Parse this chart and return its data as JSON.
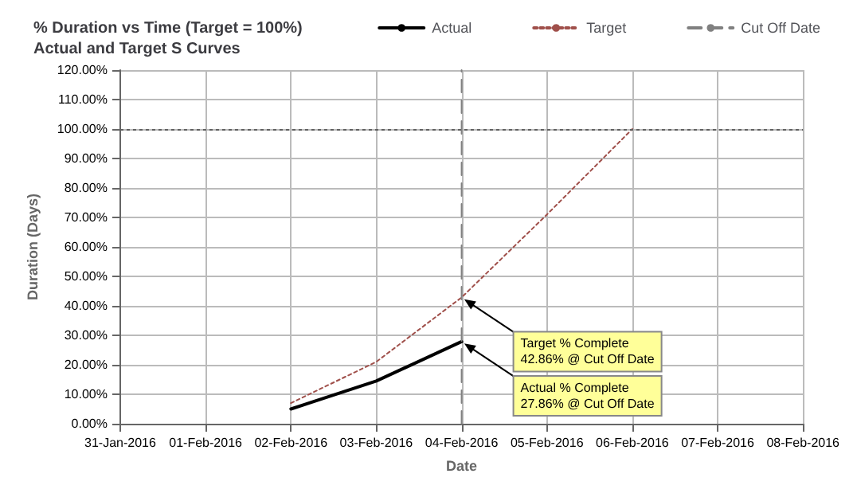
{
  "chart_data": {
    "type": "line",
    "title": "% Duration vs Time (Target = 100%)",
    "subtitle": "Actual and Target S Curves",
    "xlabel": "Date",
    "ylabel": "Duration (Days)",
    "series": [
      {
        "name": "Actual",
        "color": "#000000",
        "line_style": "solid",
        "x": [
          "2016-02-02",
          "2016-02-03",
          "2016-02-04"
        ],
        "values": [
          5,
          14.5,
          27.86
        ]
      },
      {
        "name": "Target",
        "color": "#a0504b",
        "line_style": "dotted",
        "x": [
          "2016-02-02",
          "2016-02-03",
          "2016-02-04",
          "2016-02-05",
          "2016-02-06"
        ],
        "values": [
          7,
          21,
          42.86,
          71,
          100
        ]
      },
      {
        "name": "Cut Off Date",
        "color": "#808080",
        "line_style": "dashed",
        "x": [
          "2016-02-04",
          "2016-02-04"
        ],
        "values": [
          0,
          120
        ]
      }
    ],
    "ref_lines": [
      {
        "axis": "y",
        "value": 100,
        "color": "#606060",
        "line_style": "dotted"
      }
    ],
    "annotations": [
      {
        "text": "Target % Complete\n42.86% @ Cut Off Date",
        "x": "2016-02-04",
        "y": 42.86
      },
      {
        "text": "Actual % Complete\n27.86% @ Cut Off Date",
        "x": "2016-02-04",
        "y": 27.86
      }
    ],
    "xlim": [
      "2016-01-31",
      "2016-02-08"
    ],
    "xticks": [
      {
        "value": "2016-01-31",
        "label": "31-Jan-2016"
      },
      {
        "value": "2016-02-01",
        "label": "01-Feb-2016"
      },
      {
        "value": "2016-02-02",
        "label": "02-Feb-2016"
      },
      {
        "value": "2016-02-03",
        "label": "03-Feb-2016"
      },
      {
        "value": "2016-02-04",
        "label": "04-Feb-2016"
      },
      {
        "value": "2016-02-05",
        "label": "05-Feb-2016"
      },
      {
        "value": "2016-02-06",
        "label": "06-Feb-2016"
      },
      {
        "value": "2016-02-07",
        "label": "07-Feb-2016"
      },
      {
        "value": "2016-02-08",
        "label": "08-Feb-2016"
      }
    ],
    "ylim": [
      0,
      120
    ],
    "yticks": [
      {
        "value": 0,
        "label": "0.00%"
      },
      {
        "value": 10,
        "label": "10.00%"
      },
      {
        "value": 20,
        "label": "20.00%"
      },
      {
        "value": 30,
        "label": "30.00%"
      },
      {
        "value": 40,
        "label": "40.00%"
      },
      {
        "value": 50,
        "label": "50.00%"
      },
      {
        "value": 60,
        "label": "60.00%"
      },
      {
        "value": 70,
        "label": "70.00%"
      },
      {
        "value": 80,
        "label": "80.00%"
      },
      {
        "value": 90,
        "label": "90.00%"
      },
      {
        "value": 100,
        "label": "100.00%"
      },
      {
        "value": 110,
        "label": "110.00%"
      },
      {
        "value": 120,
        "label": "120.00%"
      }
    ],
    "grid": true,
    "legend": "top right",
    "marker": "none"
  }
}
